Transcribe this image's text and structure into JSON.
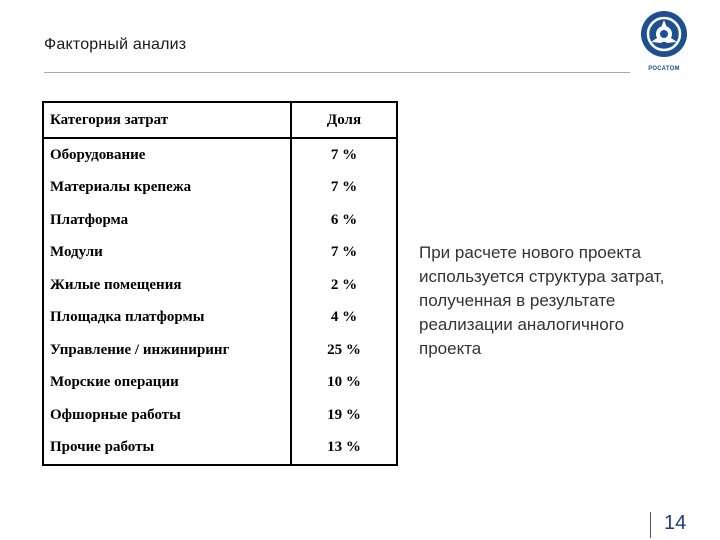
{
  "header": {
    "title": "Факторный анализ",
    "logo_text": "РОСАТОМ"
  },
  "table": {
    "headers": {
      "category": "Категория затрат",
      "share": "Доля"
    },
    "rows": [
      {
        "category": "Оборудование",
        "share": "7 %"
      },
      {
        "category": "Материалы крепежа",
        "share": "7 %"
      },
      {
        "category": "Платформа",
        "share": "6 %"
      },
      {
        "category": "Модули",
        "share": "7 %"
      },
      {
        "category": "Жилые помещения",
        "share": "2 %"
      },
      {
        "category": "Площадка платформы",
        "share": "4 %"
      },
      {
        "category": "Управление / инжиниринг",
        "share": "25 %"
      },
      {
        "category": "Морские операции",
        "share": "10 %"
      },
      {
        "category": "Офшорные работы",
        "share": "19 %"
      },
      {
        "category": "Прочие работы",
        "share": "13 %"
      }
    ]
  },
  "note": "При расчете нового проекта\nиспользуется структура затрат,\nполученная в результате\nреализации аналогичного\nпроекта",
  "footer": {
    "page_number": "14"
  },
  "colors": {
    "brand": "#1d4f91",
    "page_number": "#1f3c88"
  },
  "icons": {
    "logo": "rosatom-logo-icon"
  }
}
